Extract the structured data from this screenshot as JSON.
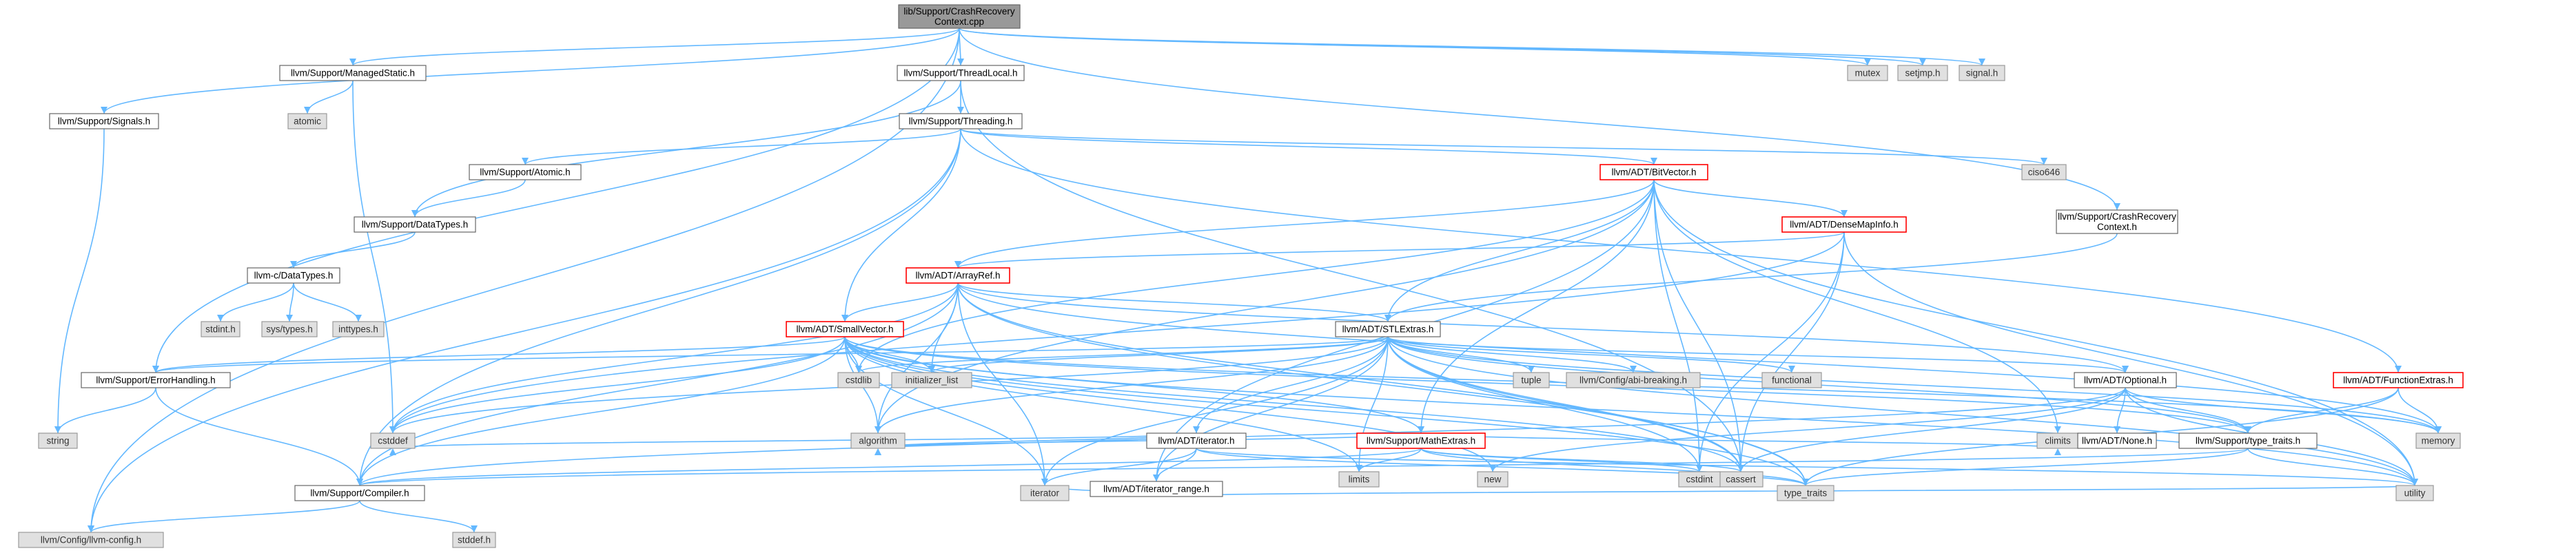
{
  "diagram": {
    "nodes": [
      {
        "id": "root",
        "lines": [
          "lib/Support/CrashRecovery",
          "Context.cpp"
        ],
        "kind": "root"
      },
      {
        "id": "managedstatic",
        "lines": [
          "llvm/Support/ManagedStatic.h"
        ],
        "kind": "internal"
      },
      {
        "id": "threadlocal",
        "lines": [
          "llvm/Support/ThreadLocal.h"
        ],
        "kind": "internal"
      },
      {
        "id": "signals",
        "lines": [
          "llvm/Support/Signals.h"
        ],
        "kind": "internal"
      },
      {
        "id": "mutex",
        "lines": [
          "mutex"
        ],
        "kind": "external"
      },
      {
        "id": "setjmp",
        "lines": [
          "setjmp.h"
        ],
        "kind": "external"
      },
      {
        "id": "signalh",
        "lines": [
          "signal.h"
        ],
        "kind": "external"
      },
      {
        "id": "atomic",
        "lines": [
          "atomic"
        ],
        "kind": "external"
      },
      {
        "id": "threading",
        "lines": [
          "llvm/Support/Threading.h"
        ],
        "kind": "internal"
      },
      {
        "id": "crctxh",
        "lines": [
          "llvm/Support/CrashRecovery",
          "Context.h"
        ],
        "kind": "internal"
      },
      {
        "id": "supatomic",
        "lines": [
          "llvm/Support/Atomic.h"
        ],
        "kind": "internal"
      },
      {
        "id": "ciso646",
        "lines": [
          "ciso646"
        ],
        "kind": "external"
      },
      {
        "id": "bitvector",
        "lines": [
          "llvm/ADT/BitVector.h"
        ],
        "kind": "hot"
      },
      {
        "id": "datatypes",
        "lines": [
          "llvm/Support/DataTypes.h"
        ],
        "kind": "internal"
      },
      {
        "id": "densemapinfo",
        "lines": [
          "llvm/ADT/DenseMapInfo.h"
        ],
        "kind": "hot"
      },
      {
        "id": "cdatatypes",
        "lines": [
          "llvm-c/DataTypes.h"
        ],
        "kind": "internal"
      },
      {
        "id": "arrayref",
        "lines": [
          "llvm/ADT/ArrayRef.h"
        ],
        "kind": "hot"
      },
      {
        "id": "stdinth",
        "lines": [
          "stdint.h"
        ],
        "kind": "external"
      },
      {
        "id": "systypes",
        "lines": [
          "sys/types.h"
        ],
        "kind": "external"
      },
      {
        "id": "inttypes",
        "lines": [
          "inttypes.h"
        ],
        "kind": "external"
      },
      {
        "id": "stlextras",
        "lines": [
          "llvm/ADT/STLExtras.h"
        ],
        "kind": "internal"
      },
      {
        "id": "smallvector",
        "lines": [
          "llvm/ADT/SmallVector.h"
        ],
        "kind": "hot"
      },
      {
        "id": "errorhandling",
        "lines": [
          "llvm/Support/ErrorHandling.h"
        ],
        "kind": "internal"
      },
      {
        "id": "cstdlib",
        "lines": [
          "cstdlib"
        ],
        "kind": "external"
      },
      {
        "id": "initlist",
        "lines": [
          "initializer_list"
        ],
        "kind": "external"
      },
      {
        "id": "tuple",
        "lines": [
          "tuple"
        ],
        "kind": "external"
      },
      {
        "id": "abibreaking",
        "lines": [
          "llvm/Config/abi-breaking.h"
        ],
        "kind": "external"
      },
      {
        "id": "functional",
        "lines": [
          "functional"
        ],
        "kind": "external"
      },
      {
        "id": "optional",
        "lines": [
          "llvm/ADT/Optional.h"
        ],
        "kind": "internal"
      },
      {
        "id": "functionextras",
        "lines": [
          "llvm/ADT/FunctionExtras.h"
        ],
        "kind": "hot"
      },
      {
        "id": "string",
        "lines": [
          "string"
        ],
        "kind": "external"
      },
      {
        "id": "cstddef",
        "lines": [
          "cstddef"
        ],
        "kind": "external"
      },
      {
        "id": "adtiterator",
        "lines": [
          "llvm/ADT/iterator.h"
        ],
        "kind": "internal"
      },
      {
        "id": "mathextras",
        "lines": [
          "llvm/Support/MathExtras.h"
        ],
        "kind": "hot"
      },
      {
        "id": "algorithm",
        "lines": [
          "algorithm"
        ],
        "kind": "external"
      },
      {
        "id": "new",
        "lines": [
          "new"
        ],
        "kind": "external"
      },
      {
        "id": "limits",
        "lines": [
          "limits"
        ],
        "kind": "external"
      },
      {
        "id": "iterrange",
        "lines": [
          "llvm/ADT/iterator_range.h"
        ],
        "kind": "internal"
      },
      {
        "id": "cassert",
        "lines": [
          "cassert"
        ],
        "kind": "external"
      },
      {
        "id": "cstdint",
        "lines": [
          "cstdint"
        ],
        "kind": "external"
      },
      {
        "id": "climits",
        "lines": [
          "climits"
        ],
        "kind": "external"
      },
      {
        "id": "none",
        "lines": [
          "llvm/ADT/None.h"
        ],
        "kind": "internal"
      },
      {
        "id": "typetraitsh",
        "lines": [
          "llvm/Support/type_traits.h"
        ],
        "kind": "internal"
      },
      {
        "id": "memory",
        "lines": [
          "memory"
        ],
        "kind": "external"
      },
      {
        "id": "utility",
        "lines": [
          "utility"
        ],
        "kind": "external"
      },
      {
        "id": "compiler",
        "lines": [
          "llvm/Support/Compiler.h"
        ],
        "kind": "internal"
      },
      {
        "id": "iterator",
        "lines": [
          "iterator"
        ],
        "kind": "external"
      },
      {
        "id": "typetraits",
        "lines": [
          "type_traits"
        ],
        "kind": "external"
      },
      {
        "id": "stddef",
        "lines": [
          "stddef.h"
        ],
        "kind": "external"
      },
      {
        "id": "llvmconfig",
        "lines": [
          "llvm/Config/llvm-config.h"
        ],
        "kind": "external"
      }
    ],
    "edges": [
      [
        "root",
        "managedstatic"
      ],
      [
        "root",
        "threadlocal"
      ],
      [
        "root",
        "signals"
      ],
      [
        "root",
        "mutex"
      ],
      [
        "root",
        "setjmp"
      ],
      [
        "root",
        "signalh"
      ],
      [
        "root",
        "crctxh"
      ],
      [
        "root",
        "errorhandling"
      ],
      [
        "root",
        "llvmconfig"
      ],
      [
        "managedstatic",
        "atomic"
      ],
      [
        "managedstatic",
        "cstddef"
      ],
      [
        "threadlocal",
        "threading"
      ],
      [
        "threadlocal",
        "datatypes"
      ],
      [
        "threadlocal",
        "cassert"
      ],
      [
        "signals",
        "string"
      ],
      [
        "threading",
        "supatomic"
      ],
      [
        "threading",
        "ciso646"
      ],
      [
        "threading",
        "bitvector"
      ],
      [
        "threading",
        "smallvector"
      ],
      [
        "threading",
        "compiler"
      ],
      [
        "threading",
        "llvmconfig"
      ],
      [
        "threading",
        "functionextras"
      ],
      [
        "supatomic",
        "datatypes"
      ],
      [
        "datatypes",
        "cdatatypes"
      ],
      [
        "cdatatypes",
        "stdinth"
      ],
      [
        "cdatatypes",
        "systypes"
      ],
      [
        "cdatatypes",
        "inttypes"
      ],
      [
        "bitvector",
        "densemapinfo"
      ],
      [
        "bitvector",
        "arrayref"
      ],
      [
        "bitvector",
        "stlextras"
      ],
      [
        "bitvector",
        "mathextras"
      ],
      [
        "bitvector",
        "algorithm"
      ],
      [
        "bitvector",
        "cassert"
      ],
      [
        "bitvector",
        "climits"
      ],
      [
        "bitvector",
        "cstdint"
      ],
      [
        "bitvector",
        "cstdlib"
      ],
      [
        "bitvector",
        "utility"
      ],
      [
        "bitvector",
        "iterrange"
      ],
      [
        "crctxh",
        "stlextras"
      ],
      [
        "densemapinfo",
        "arrayref"
      ],
      [
        "densemapinfo",
        "cassert"
      ],
      [
        "densemapinfo",
        "cstddef"
      ],
      [
        "densemapinfo",
        "cstdint"
      ],
      [
        "densemapinfo",
        "utility"
      ],
      [
        "arrayref",
        "smallvector"
      ],
      [
        "arrayref",
        "stlextras"
      ],
      [
        "arrayref",
        "compiler"
      ],
      [
        "arrayref",
        "algorithm"
      ],
      [
        "arrayref",
        "cassert"
      ],
      [
        "arrayref",
        "cstddef"
      ],
      [
        "arrayref",
        "initlist"
      ],
      [
        "arrayref",
        "iterator"
      ],
      [
        "arrayref",
        "memory"
      ],
      [
        "arrayref",
        "typetraits"
      ],
      [
        "arrayref",
        "optional"
      ],
      [
        "stlextras",
        "optional"
      ],
      [
        "stlextras",
        "adtiterator"
      ],
      [
        "stlextras",
        "iterrange"
      ],
      [
        "stlextras",
        "abibreaking"
      ],
      [
        "stlextras",
        "errorhandling"
      ],
      [
        "stlextras",
        "algorithm"
      ],
      [
        "stlextras",
        "cassert"
      ],
      [
        "stlextras",
        "cstddef"
      ],
      [
        "stlextras",
        "cstdint"
      ],
      [
        "stlextras",
        "cstdlib"
      ],
      [
        "stlextras",
        "functional"
      ],
      [
        "stlextras",
        "initlist"
      ],
      [
        "stlextras",
        "iterator"
      ],
      [
        "stlextras",
        "limits"
      ],
      [
        "stlextras",
        "memory"
      ],
      [
        "stlextras",
        "tuple"
      ],
      [
        "stlextras",
        "typetraits"
      ],
      [
        "stlextras",
        "utility"
      ],
      [
        "stlextras",
        "typetraitsh"
      ],
      [
        "smallvector",
        "compiler"
      ],
      [
        "smallvector",
        "errorhandling"
      ],
      [
        "smallvector",
        "mathextras"
      ],
      [
        "smallvector",
        "typetraitsh"
      ],
      [
        "smallvector",
        "algorithm"
      ],
      [
        "smallvector",
        "cassert"
      ],
      [
        "smallvector",
        "cstddef"
      ],
      [
        "smallvector",
        "cstdlib"
      ],
      [
        "smallvector",
        "cstring_placeholder"
      ],
      [
        "smallvector",
        "initlist"
      ],
      [
        "smallvector",
        "iterator"
      ],
      [
        "smallvector",
        "limits"
      ],
      [
        "smallvector",
        "memory"
      ],
      [
        "smallvector",
        "new"
      ],
      [
        "smallvector",
        "typetraits"
      ],
      [
        "smallvector",
        "utility"
      ],
      [
        "errorhandling",
        "compiler"
      ],
      [
        "errorhandling",
        "string"
      ],
      [
        "optional",
        "none"
      ],
      [
        "optional",
        "compiler"
      ],
      [
        "optional",
        "typetraitsh"
      ],
      [
        "optional",
        "cassert"
      ],
      [
        "optional",
        "memory"
      ],
      [
        "optional",
        "new"
      ],
      [
        "optional",
        "utility"
      ],
      [
        "functionextras",
        "typetraitsh"
      ],
      [
        "functionextras",
        "memory"
      ],
      [
        "functionextras",
        "typetraits"
      ],
      [
        "adtiterator",
        "iterrange"
      ],
      [
        "adtiterator",
        "algorithm"
      ],
      [
        "adtiterator",
        "cstddef"
      ],
      [
        "adtiterator",
        "iterator"
      ],
      [
        "adtiterator",
        "typetraits"
      ],
      [
        "adtiterator",
        "utility"
      ],
      [
        "mathextras",
        "compiler"
      ],
      [
        "mathextras",
        "algorithm"
      ],
      [
        "mathextras",
        "cassert"
      ],
      [
        "mathextras",
        "climits"
      ],
      [
        "mathextras",
        "cstdint"
      ],
      [
        "mathextras",
        "cstring_placeholder"
      ],
      [
        "mathextras",
        "limits"
      ],
      [
        "mathextras",
        "typetraits"
      ],
      [
        "iterrange",
        "iterator"
      ],
      [
        "iterrange",
        "utility"
      ],
      [
        "typetraitsh",
        "compiler"
      ],
      [
        "typetraitsh",
        "typetraits"
      ],
      [
        "typetraitsh",
        "utility"
      ],
      [
        "compiler",
        "llvmconfig"
      ],
      [
        "compiler",
        "stddef"
      ]
    ]
  }
}
